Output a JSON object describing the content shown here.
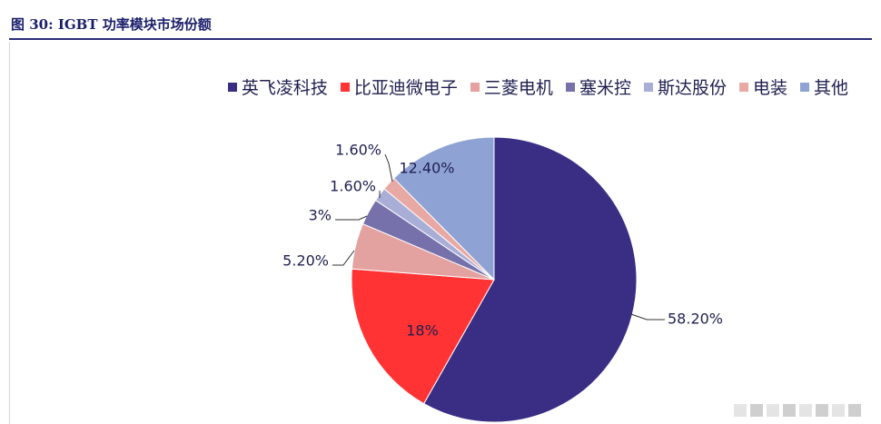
{
  "figure": {
    "title": "图 30: IGBT 功率模块市场份额"
  },
  "chart_data": {
    "type": "pie",
    "start_angle_deg": 0,
    "direction": "clockwise",
    "legend_placement": "top-right",
    "slices": [
      {
        "name": "英飞凌科技",
        "value": 58.2,
        "label": "58.20%",
        "color": "#3a2e84",
        "label_placement": "outside"
      },
      {
        "name": "比亚迪微电子",
        "value": 18.0,
        "label": "18%",
        "color": "#ff3333",
        "label_placement": "inside"
      },
      {
        "name": "三菱电机",
        "value": 5.2,
        "label": "5.20%",
        "color": "#e3a19f",
        "label_placement": "outside"
      },
      {
        "name": "塞米控",
        "value": 3.0,
        "label": "3%",
        "color": "#7670ab",
        "label_placement": "outside"
      },
      {
        "name": "斯达股份",
        "value": 1.6,
        "label": "1.60%",
        "color": "#a9aed6",
        "label_placement": "outside"
      },
      {
        "name": "电装",
        "value": 1.6,
        "label": "1.60%",
        "color": "#e8a8a4",
        "label_placement": "outside"
      },
      {
        "name": "其他",
        "value": 12.4,
        "label": "12.40%",
        "color": "#8ea3d4",
        "label_placement": "inside"
      }
    ]
  }
}
